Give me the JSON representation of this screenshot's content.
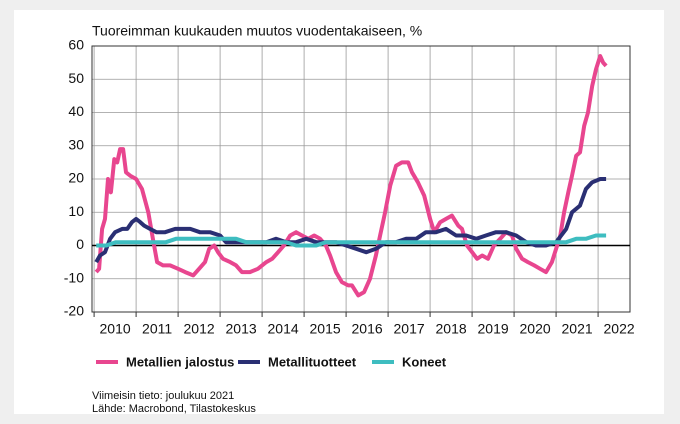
{
  "chart_data": {
    "type": "line",
    "title": "Tuoreimman kuukauden muutos vuodentakaiseen, %",
    "xlim": [
      2009.95,
      2022.76
    ],
    "xticks": [
      2010,
      2011,
      2012,
      2013,
      2014,
      2015,
      2016,
      2017,
      2018,
      2019,
      2020,
      2021,
      2022
    ],
    "ylim": [
      -20,
      60
    ],
    "yticks": [
      -20,
      -10,
      0,
      10,
      20,
      30,
      40,
      50,
      60
    ],
    "grid": true,
    "legend": "bottom",
    "series": [
      {
        "name": "Metallien jalostus",
        "color": "#e8468f",
        "x": [
          2010.05,
          2010.12,
          2010.19,
          2010.26,
          2010.33,
          2010.4,
          2010.48,
          2010.55,
          2010.62,
          2010.69,
          2010.76,
          2010.86,
          2011.0,
          2011.14,
          2011.29,
          2011.4,
          2011.5,
          2011.64,
          2011.81,
          2012.0,
          2012.17,
          2012.36,
          2012.5,
          2012.64,
          2012.74,
          2012.86,
          2012.95,
          2013.07,
          2013.24,
          2013.38,
          2013.52,
          2013.71,
          2013.9,
          2014.1,
          2014.24,
          2014.38,
          2014.52,
          2014.67,
          2014.81,
          2014.95,
          2015.1,
          2015.24,
          2015.38,
          2015.52,
          2015.62,
          2015.76,
          2015.9,
          2016.05,
          2016.14,
          2016.29,
          2016.43,
          2016.57,
          2016.71,
          2016.81,
          2016.93,
          2017.05,
          2017.19,
          2017.33,
          2017.48,
          2017.57,
          2017.71,
          2017.86,
          2018.0,
          2018.1,
          2018.24,
          2018.38,
          2018.52,
          2018.67,
          2018.76,
          2018.88,
          2019.0,
          2019.12,
          2019.24,
          2019.38,
          2019.52,
          2019.67,
          2019.81,
          2019.95,
          2020.05,
          2020.19,
          2020.33,
          2020.48,
          2020.62,
          2020.76,
          2020.9,
          2021.0,
          2021.1,
          2021.19,
          2021.29,
          2021.38,
          2021.48,
          2021.57,
          2021.67,
          2021.76,
          2021.86,
          2021.95,
          2022.05,
          2022.12,
          2022.19
        ],
        "values": [
          -8,
          -7,
          5,
          8,
          20,
          16,
          26,
          25,
          29,
          29,
          22,
          21,
          20,
          17,
          10,
          2,
          -5,
          -6,
          -6,
          -7,
          -8,
          -9,
          -7,
          -5,
          -1,
          0,
          -2,
          -4,
          -5,
          -6,
          -8,
          -8,
          -7,
          -5,
          -4,
          -2,
          0,
          3,
          4,
          3,
          2,
          3,
          2,
          0,
          -3,
          -8,
          -11,
          -12,
          -12,
          -15,
          -14,
          -10,
          -3,
          3,
          10,
          18,
          24,
          25,
          25,
          22,
          19,
          15,
          8,
          4,
          7,
          8,
          9,
          6,
          5,
          0,
          -2,
          -4,
          -3,
          -4,
          0,
          2,
          4,
          3,
          -1,
          -4,
          -5,
          -6,
          -7,
          -8,
          -5,
          -1,
          3,
          10,
          16,
          21,
          27,
          28,
          36,
          40,
          48,
          53,
          57,
          55,
          54
        ]
      },
      {
        "name": "Metallituotteet",
        "color": "#2a2f73",
        "x": [
          2010.05,
          2010.14,
          2010.26,
          2010.38,
          2010.5,
          2010.67,
          2010.79,
          2010.9,
          2011.0,
          2011.1,
          2011.19,
          2011.33,
          2011.48,
          2011.69,
          2011.93,
          2012.05,
          2012.29,
          2012.52,
          2012.76,
          2013.0,
          2013.14,
          2013.38,
          2013.62,
          2013.86,
          2014.1,
          2014.33,
          2014.57,
          2014.81,
          2015.05,
          2015.29,
          2015.52,
          2015.76,
          2016.0,
          2016.24,
          2016.48,
          2016.71,
          2016.95,
          2017.19,
          2017.43,
          2017.67,
          2017.9,
          2018.14,
          2018.38,
          2018.62,
          2018.86,
          2019.1,
          2019.33,
          2019.57,
          2019.81,
          2020.05,
          2020.29,
          2020.52,
          2020.76,
          2021.0,
          2021.24,
          2021.38,
          2021.57,
          2021.71,
          2021.86,
          2022.05,
          2022.19
        ],
        "values": [
          -5,
          -3,
          -2,
          2,
          4,
          5,
          5,
          7,
          8,
          7,
          6,
          5,
          4,
          4,
          5,
          5,
          5,
          4,
          4,
          3,
          1,
          1,
          1,
          1,
          1,
          2,
          1,
          1,
          2,
          1,
          1,
          1,
          0,
          -1,
          -2,
          -1,
          1,
          1,
          2,
          2,
          4,
          4,
          5,
          3,
          3,
          2,
          3,
          4,
          4,
          3,
          1,
          0,
          0,
          1,
          5,
          10,
          12,
          17,
          19,
          20,
          20
        ]
      },
      {
        "name": "Koneet",
        "color": "#3ebdc0",
        "x": [
          2010.05,
          2010.29,
          2010.52,
          2010.76,
          2011.0,
          2011.24,
          2011.48,
          2011.71,
          2011.95,
          2012.19,
          2012.43,
          2012.67,
          2012.9,
          2013.14,
          2013.38,
          2013.62,
          2013.86,
          2014.1,
          2014.33,
          2014.57,
          2014.81,
          2015.05,
          2015.29,
          2015.52,
          2015.76,
          2016.0,
          2016.24,
          2016.48,
          2016.71,
          2016.95,
          2017.19,
          2017.43,
          2017.67,
          2017.9,
          2018.14,
          2018.38,
          2018.62,
          2018.86,
          2019.1,
          2019.33,
          2019.57,
          2019.81,
          2020.05,
          2020.29,
          2020.52,
          2020.76,
          2021.0,
          2021.24,
          2021.48,
          2021.71,
          2021.95,
          2022.19
        ],
        "values": [
          0,
          0,
          1,
          1,
          1,
          1,
          1,
          1,
          2,
          2,
          2,
          2,
          2,
          2,
          2,
          1,
          1,
          1,
          1,
          1,
          0,
          0,
          0,
          1,
          1,
          1,
          1,
          1,
          1,
          1,
          1,
          1,
          1,
          1,
          1,
          1,
          1,
          1,
          1,
          1,
          1,
          1,
          1,
          1,
          1,
          1,
          1,
          1,
          2,
          2,
          3,
          3
        ]
      }
    ],
    "notes": [
      "Viimeisin tieto: joulukuu 2021",
      "Lähde: Macrobond, Tilastokeskus"
    ]
  }
}
